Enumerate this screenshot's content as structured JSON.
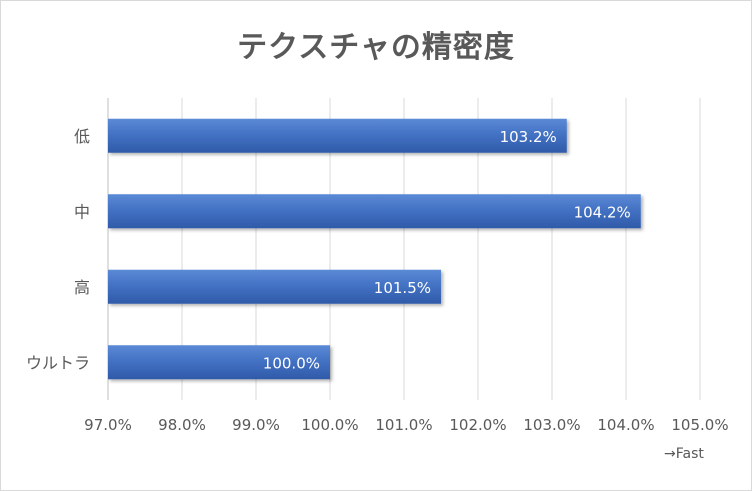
{
  "chart_data": {
    "type": "bar",
    "orientation": "horizontal",
    "title": "テクスチャの精密度",
    "categories": [
      "低",
      "中",
      "高",
      "ウルトラ"
    ],
    "values": [
      103.2,
      104.2,
      101.5,
      100.0
    ],
    "data_labels": [
      "103.2%",
      "104.2%",
      "101.5%",
      "100.0%"
    ],
    "xlim": [
      97.0,
      105.0
    ],
    "x_ticks": [
      "97.0%",
      "98.0%",
      "99.0%",
      "100.0%",
      "101.0%",
      "102.0%",
      "103.0%",
      "104.0%",
      "105.0%"
    ],
    "axis_note": "→Fast",
    "grid": true,
    "bar_color": "#4472c4"
  }
}
